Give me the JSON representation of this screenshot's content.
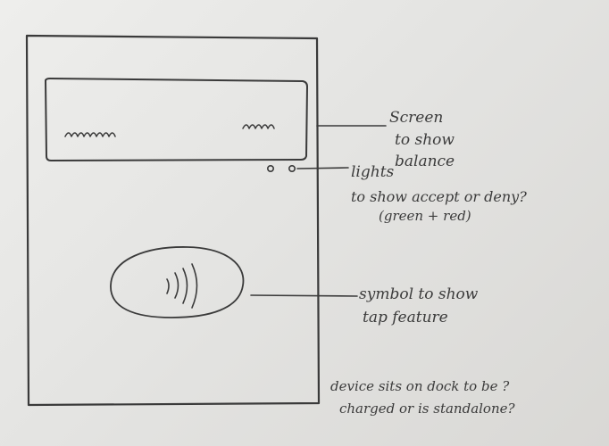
{
  "annotations": {
    "screen": [
      "Screen",
      "to show",
      "balance"
    ],
    "lights": [
      "lights",
      "to show accept or deny?",
      "(green + red)"
    ],
    "symbol": [
      "symbol to show",
      "tap feature"
    ],
    "dock": [
      "device sits on dock to be ?",
      "charged or is standalone?"
    ]
  },
  "screen_scribbles": [
    "mmm",
    "mm"
  ],
  "ink_color": "#3a3a3a",
  "paper_color": "#e4e4e2"
}
